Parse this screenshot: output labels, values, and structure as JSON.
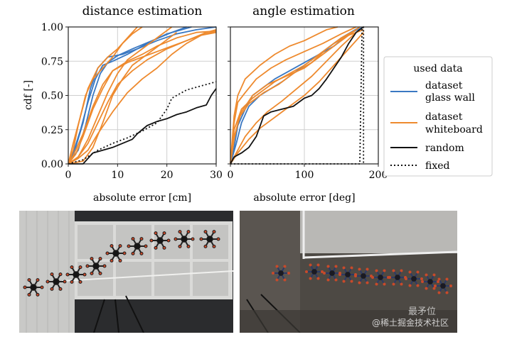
{
  "figure": {
    "ylabel": "cdf [-]",
    "legend": {
      "title": "used data",
      "entries": [
        {
          "label_line1": "dataset",
          "label_line2": "glass wall",
          "color": "#3a78c2",
          "style": "solid"
        },
        {
          "label_line1": "dataset",
          "label_line2": "whiteboard",
          "color": "#ee8a2e",
          "style": "solid"
        },
        {
          "label_line1": "random",
          "label_line2": "",
          "color": "#111111",
          "style": "solid"
        },
        {
          "label_line1": "fixed",
          "label_line2": "",
          "color": "#111111",
          "style": "dotted"
        }
      ]
    }
  },
  "chart_data": [
    {
      "type": "line",
      "title": "distance estimation",
      "xlabel": "absolute error [cm]",
      "ylabel": "cdf [-]",
      "xlim": [
        0,
        30
      ],
      "ylim": [
        0,
        1
      ],
      "xticks": [
        "0",
        "10",
        "20",
        "30"
      ],
      "yticks": [
        "0.00",
        "0.25",
        "0.50",
        "0.75",
        "1.00"
      ],
      "grid": true,
      "series": [
        {
          "name": "glass wall 1",
          "group": "glass",
          "x": [
            0,
            1.5,
            3,
            4.5,
            6,
            8,
            11,
            14,
            18,
            22,
            26,
            30
          ],
          "y": [
            0,
            0.12,
            0.3,
            0.55,
            0.7,
            0.78,
            0.8,
            0.84,
            0.9,
            0.95,
            0.98,
            1.0
          ]
        },
        {
          "name": "glass wall 2",
          "group": "glass",
          "x": [
            0,
            1,
            2.5,
            4,
            5.5,
            7,
            9,
            12,
            16,
            20,
            25
          ],
          "y": [
            0,
            0.08,
            0.25,
            0.45,
            0.62,
            0.72,
            0.75,
            0.8,
            0.88,
            0.95,
            1.0
          ]
        },
        {
          "name": "glass wall 3",
          "group": "glass",
          "x": [
            0,
            2,
            3.5,
            5,
            6.5,
            8,
            10,
            13,
            17,
            21,
            24
          ],
          "y": [
            0,
            0.1,
            0.28,
            0.5,
            0.66,
            0.74,
            0.79,
            0.84,
            0.9,
            0.96,
            1.0
          ]
        },
        {
          "name": "whiteboard 1",
          "group": "white",
          "x": [
            0,
            1,
            2,
            3.5,
            5,
            7,
            9,
            11,
            13,
            15
          ],
          "y": [
            0,
            0.1,
            0.28,
            0.5,
            0.62,
            0.7,
            0.78,
            0.88,
            0.95,
            1.0
          ]
        },
        {
          "name": "whiteboard 2",
          "group": "white",
          "x": [
            0,
            2,
            4,
            6,
            8,
            10,
            13,
            16,
            20,
            24,
            28,
            30
          ],
          "y": [
            0,
            0.05,
            0.15,
            0.3,
            0.45,
            0.58,
            0.68,
            0.76,
            0.84,
            0.9,
            0.96,
            0.98
          ]
        },
        {
          "name": "whiteboard 3",
          "group": "white",
          "x": [
            0,
            1.5,
            3,
            5,
            7,
            9,
            12,
            15,
            18,
            22,
            26,
            30
          ],
          "y": [
            0,
            0.07,
            0.2,
            0.4,
            0.55,
            0.68,
            0.75,
            0.8,
            0.86,
            0.92,
            0.96,
            0.97
          ]
        },
        {
          "name": "whiteboard 4",
          "group": "white",
          "x": [
            0,
            3,
            5,
            7,
            9,
            11,
            13,
            16,
            19,
            22
          ],
          "y": [
            0,
            0.02,
            0.12,
            0.3,
            0.5,
            0.62,
            0.72,
            0.8,
            0.88,
            0.96
          ]
        },
        {
          "name": "whiteboard 5",
          "group": "white",
          "x": [
            0,
            1,
            2.5,
            4,
            6,
            8,
            10,
            12,
            14
          ],
          "y": [
            0,
            0.15,
            0.35,
            0.55,
            0.7,
            0.78,
            0.84,
            0.92,
            1.0
          ]
        },
        {
          "name": "whiteboard 6",
          "group": "white",
          "x": [
            0,
            2,
            4,
            6,
            8,
            10,
            12,
            15,
            18,
            21
          ],
          "y": [
            0,
            0.05,
            0.18,
            0.35,
            0.52,
            0.66,
            0.76,
            0.84,
            0.92,
            1.0
          ]
        },
        {
          "name": "whiteboard 7",
          "group": "white",
          "x": [
            0,
            2,
            4,
            6,
            9,
            12,
            15,
            18,
            21,
            24,
            27,
            30
          ],
          "y": [
            0,
            0.04,
            0.1,
            0.22,
            0.38,
            0.52,
            0.62,
            0.7,
            0.8,
            0.88,
            0.94,
            0.97
          ]
        },
        {
          "name": "whiteboard 8",
          "group": "white",
          "x": [
            0,
            1,
            3,
            5,
            7,
            9,
            12,
            15,
            18,
            21,
            24,
            27,
            30
          ],
          "y": [
            0,
            0.06,
            0.22,
            0.42,
            0.58,
            0.68,
            0.74,
            0.78,
            0.82,
            0.86,
            0.9,
            0.94,
            0.96
          ]
        },
        {
          "name": "random",
          "group": "random",
          "x": [
            0,
            3,
            5,
            7,
            9,
            11,
            13,
            14,
            16,
            18,
            20,
            22,
            24,
            26,
            28,
            29,
            30
          ],
          "y": [
            0,
            0.0,
            0.08,
            0.1,
            0.12,
            0.15,
            0.18,
            0.22,
            0.28,
            0.31,
            0.33,
            0.36,
            0.38,
            0.41,
            0.43,
            0.5,
            0.55
          ]
        },
        {
          "name": "fixed",
          "group": "fixed",
          "x": [
            0,
            3,
            6,
            9,
            12,
            15,
            18,
            20,
            21,
            22,
            24,
            26,
            28,
            30
          ],
          "y": [
            0,
            0.03,
            0.1,
            0.15,
            0.19,
            0.24,
            0.3,
            0.4,
            0.48,
            0.5,
            0.54,
            0.56,
            0.58,
            0.6
          ]
        }
      ]
    },
    {
      "type": "line",
      "title": "angle estimation",
      "xlabel": "absolute error [deg]",
      "ylabel": "",
      "xlim": [
        0,
        200
      ],
      "ylim": [
        0,
        1
      ],
      "xticks": [
        "0",
        "100",
        "200"
      ],
      "yticks": [
        "0.00",
        "0.25",
        "0.50",
        "0.75",
        "1.00"
      ],
      "grid": true,
      "series": [
        {
          "name": "glass wall 1",
          "group": "glass",
          "x": [
            0,
            5,
            10,
            20,
            30,
            45,
            60,
            80,
            100,
            120,
            140,
            160,
            180
          ],
          "y": [
            0,
            0.12,
            0.28,
            0.4,
            0.5,
            0.56,
            0.62,
            0.68,
            0.74,
            0.8,
            0.86,
            0.95,
            1.0
          ]
        },
        {
          "name": "glass wall 2",
          "group": "glass",
          "x": [
            0,
            8,
            15,
            25,
            40,
            55,
            70,
            90,
            110,
            130,
            150,
            175
          ],
          "y": [
            0,
            0.15,
            0.3,
            0.42,
            0.5,
            0.55,
            0.6,
            0.68,
            0.76,
            0.84,
            0.92,
            1.0
          ]
        },
        {
          "name": "whiteboard 1",
          "group": "white",
          "x": [
            0,
            5,
            10,
            20,
            35,
            55,
            75,
            100,
            125,
            150,
            170
          ],
          "y": [
            0,
            0.3,
            0.45,
            0.52,
            0.62,
            0.7,
            0.76,
            0.82,
            0.88,
            0.95,
            1.0
          ]
        },
        {
          "name": "whiteboard 2",
          "group": "white",
          "x": [
            0,
            5,
            12,
            25,
            45,
            65,
            85,
            110,
            130,
            150,
            170
          ],
          "y": [
            0,
            0.18,
            0.34,
            0.44,
            0.52,
            0.58,
            0.66,
            0.74,
            0.84,
            0.92,
            0.98
          ]
        },
        {
          "name": "whiteboard 3",
          "group": "white",
          "x": [
            0,
            10,
            20,
            35,
            50,
            70,
            90,
            110,
            130,
            150,
            170
          ],
          "y": [
            0,
            0.1,
            0.2,
            0.3,
            0.38,
            0.46,
            0.55,
            0.64,
            0.75,
            0.86,
            0.96
          ]
        },
        {
          "name": "whiteboard 4",
          "group": "white",
          "x": [
            0,
            5,
            15,
            30,
            50,
            75,
            100,
            120,
            140,
            160,
            175
          ],
          "y": [
            0,
            0.2,
            0.38,
            0.5,
            0.58,
            0.64,
            0.7,
            0.78,
            0.86,
            0.94,
            1.0
          ]
        },
        {
          "name": "whiteboard 5",
          "group": "white",
          "x": [
            0,
            5,
            10,
            20,
            40,
            60,
            80,
            100,
            115,
            130,
            145
          ],
          "y": [
            0,
            0.35,
            0.5,
            0.62,
            0.72,
            0.8,
            0.86,
            0.9,
            0.94,
            0.98,
            1.0
          ]
        },
        {
          "name": "whiteboard 6",
          "group": "white",
          "x": [
            0,
            10,
            25,
            40,
            60,
            80,
            100,
            120,
            140,
            160,
            180
          ],
          "y": [
            0,
            0.08,
            0.18,
            0.26,
            0.34,
            0.42,
            0.5,
            0.6,
            0.72,
            0.84,
            0.96
          ]
        },
        {
          "name": "whiteboard 7",
          "group": "white",
          "x": [
            0,
            5,
            15,
            30,
            45,
            60,
            80,
            100,
            120,
            140,
            160,
            180
          ],
          "y": [
            0,
            0.25,
            0.4,
            0.48,
            0.54,
            0.6,
            0.66,
            0.72,
            0.8,
            0.88,
            0.94,
            0.98
          ]
        },
        {
          "name": "random",
          "group": "random",
          "x": [
            0,
            5,
            15,
            25,
            35,
            45,
            55,
            70,
            85,
            100,
            110,
            120,
            130,
            140,
            150,
            160,
            170,
            180
          ],
          "y": [
            0,
            0.05,
            0.08,
            0.12,
            0.2,
            0.35,
            0.38,
            0.4,
            0.42,
            0.48,
            0.5,
            0.55,
            0.62,
            0.7,
            0.78,
            0.88,
            0.96,
            1.0
          ]
        },
        {
          "name": "fixed",
          "group": "fixed",
          "x": [
            0,
            5,
            100,
            175,
            178,
            180,
            180
          ],
          "y": [
            0,
            0.0,
            0.0,
            0.0,
            0.98,
            1.0,
            0.0
          ]
        }
      ]
    }
  ],
  "photos": {
    "left": {
      "description": "drone sequence near glass wall"
    },
    "right": {
      "description": "drone sequence near whiteboard"
    },
    "watermark": "@稀土掘金技术社区",
    "watermark2": "最矛位"
  }
}
